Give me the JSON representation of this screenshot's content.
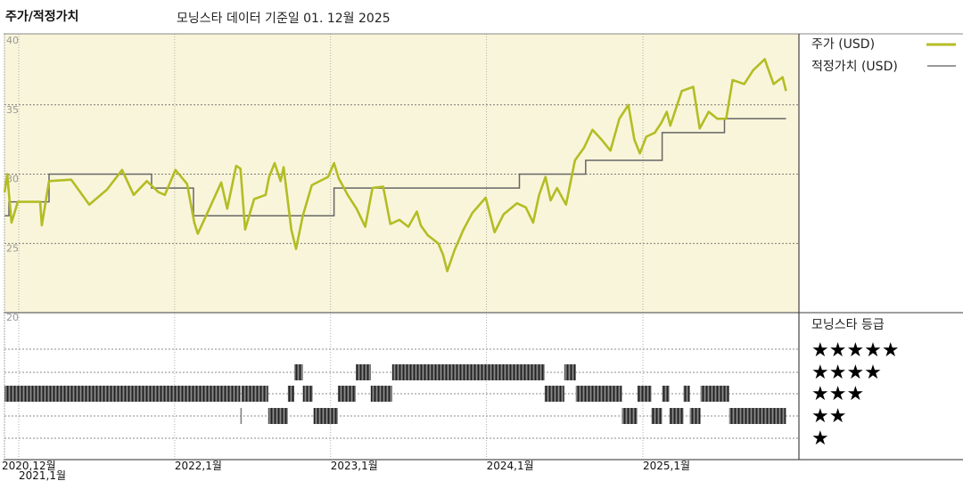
{
  "header": {
    "title": "주가/적정가치",
    "subtitle": "모닝스타 데이터 기준일 01. 12월 2025"
  },
  "legend": {
    "price_label": "주가 (USD)",
    "fair_value_label": "적정가치 (USD)",
    "rating_title": "모닝스타 등급",
    "rating_rows": [
      "★★★★★",
      "★★★★",
      "★★★",
      "★★",
      "★"
    ]
  },
  "colors": {
    "price": "#b3bd24",
    "fair_value": "#666666",
    "plot_background": "#f9f5da",
    "rating_bar": "#444444"
  },
  "chart_data": {
    "type": "line",
    "title": "주가/적정가치",
    "ylim": [
      20,
      40
    ],
    "y_ticks": [
      "40",
      "35",
      "30",
      "25",
      "20"
    ],
    "x_ticks": [
      {
        "date": "2020-12-01",
        "label": "2020,12월"
      },
      {
        "date": "2021-01-01",
        "label": "2021,1월"
      },
      {
        "date": "2022-01-01",
        "label": "2022,1월"
      },
      {
        "date": "2023-01-01",
        "label": "2023,1월"
      },
      {
        "date": "2024-01-01",
        "label": "2024,1월"
      },
      {
        "date": "2025-01-01",
        "label": "2025,1월"
      }
    ],
    "xlim": [
      "2020-11-28",
      "2025-12-27"
    ],
    "grid": true,
    "legend_position": "right",
    "series": [
      {
        "name": "주가 (USD)",
        "points": [
          [
            "2020-11-29",
            28.7
          ],
          [
            "2020-12-05",
            30.0
          ],
          [
            "2020-12-15",
            26.5
          ],
          [
            "2020-12-30",
            28.0
          ],
          [
            "2021-02-20",
            28.0
          ],
          [
            "2021-02-24",
            26.3
          ],
          [
            "2021-03-13",
            29.5
          ],
          [
            "2021-05-04",
            29.6
          ],
          [
            "2021-06-15",
            27.8
          ],
          [
            "2021-07-27",
            28.9
          ],
          [
            "2021-08-31",
            30.3
          ],
          [
            "2021-09-27",
            28.5
          ],
          [
            "2021-10-28",
            29.5
          ],
          [
            "2021-11-24",
            28.7
          ],
          [
            "2021-12-09",
            28.5
          ],
          [
            "2022-01-03",
            30.3
          ],
          [
            "2022-01-30",
            29.3
          ],
          [
            "2022-02-16",
            26.5
          ],
          [
            "2022-02-24",
            25.7
          ],
          [
            "2022-03-23",
            27.5
          ],
          [
            "2022-04-20",
            29.4
          ],
          [
            "2022-05-04",
            27.5
          ],
          [
            "2022-05-25",
            30.6
          ],
          [
            "2022-06-04",
            30.4
          ],
          [
            "2022-06-15",
            26.0
          ],
          [
            "2022-07-06",
            28.2
          ],
          [
            "2022-08-02",
            28.5
          ],
          [
            "2022-08-10",
            29.8
          ],
          [
            "2022-08-23",
            30.8
          ],
          [
            "2022-09-06",
            29.5
          ],
          [
            "2022-09-13",
            30.5
          ],
          [
            "2022-10-01",
            26.0
          ],
          [
            "2022-10-12",
            24.6
          ],
          [
            "2022-10-28",
            27.0
          ],
          [
            "2022-11-18",
            29.2
          ],
          [
            "2022-12-26",
            29.8
          ],
          [
            "2023-01-09",
            30.8
          ],
          [
            "2023-01-20",
            29.7
          ],
          [
            "2023-02-10",
            28.5
          ],
          [
            "2023-03-03",
            27.5
          ],
          [
            "2023-03-23",
            26.2
          ],
          [
            "2023-04-09",
            29.0
          ],
          [
            "2023-05-04",
            29.1
          ],
          [
            "2023-05-21",
            26.4
          ],
          [
            "2023-06-11",
            26.7
          ],
          [
            "2023-07-02",
            26.2
          ],
          [
            "2023-07-22",
            27.3
          ],
          [
            "2023-07-31",
            26.3
          ],
          [
            "2023-08-16",
            25.6
          ],
          [
            "2023-09-10",
            25.0
          ],
          [
            "2023-09-21",
            24.2
          ],
          [
            "2023-10-01",
            23.0
          ],
          [
            "2023-10-18",
            24.5
          ],
          [
            "2023-11-08",
            26.0
          ],
          [
            "2023-11-29",
            27.2
          ],
          [
            "2023-12-30",
            28.3
          ],
          [
            "2024-01-20",
            25.8
          ],
          [
            "2024-02-10",
            27.1
          ],
          [
            "2024-03-12",
            27.9
          ],
          [
            "2024-04-02",
            27.6
          ],
          [
            "2024-04-19",
            26.5
          ],
          [
            "2024-05-03",
            28.5
          ],
          [
            "2024-05-18",
            29.8
          ],
          [
            "2024-05-30",
            28.1
          ],
          [
            "2024-06-14",
            29.0
          ],
          [
            "2024-07-05",
            27.8
          ],
          [
            "2024-07-26",
            31.0
          ],
          [
            "2024-08-16",
            31.9
          ],
          [
            "2024-09-05",
            33.2
          ],
          [
            "2024-09-26",
            32.5
          ],
          [
            "2024-10-17",
            31.7
          ],
          [
            "2024-11-07",
            34.0
          ],
          [
            "2024-11-28",
            35.0
          ],
          [
            "2024-12-12",
            32.5
          ],
          [
            "2024-12-25",
            31.5
          ],
          [
            "2025-01-09",
            32.7
          ],
          [
            "2025-01-29",
            33.0
          ],
          [
            "2025-02-13",
            33.7
          ],
          [
            "2025-02-26",
            34.5
          ],
          [
            "2025-03-06",
            33.5
          ],
          [
            "2025-04-02",
            36.0
          ],
          [
            "2025-04-29",
            36.3
          ],
          [
            "2025-05-14",
            33.3
          ],
          [
            "2025-06-04",
            34.5
          ],
          [
            "2025-06-24",
            34.0
          ],
          [
            "2025-07-15",
            34.0
          ],
          [
            "2025-07-30",
            36.8
          ],
          [
            "2025-08-26",
            36.5
          ],
          [
            "2025-09-16",
            37.5
          ],
          [
            "2025-10-13",
            38.3
          ],
          [
            "2025-11-03",
            36.5
          ],
          [
            "2025-11-24",
            37.0
          ],
          [
            "2025-12-02",
            36.0
          ]
        ]
      },
      {
        "name": "적정가치 (USD)",
        "step": true,
        "points": [
          [
            "2020-11-29",
            27
          ],
          [
            "2020-12-09",
            28
          ],
          [
            "2021-03-13",
            30
          ],
          [
            "2021-11-08",
            29
          ],
          [
            "2022-02-14",
            27
          ],
          [
            "2023-01-09",
            29
          ],
          [
            "2024-03-18",
            30
          ],
          [
            "2024-08-20",
            31
          ],
          [
            "2025-02-15",
            33
          ],
          [
            "2025-07-11",
            34
          ],
          [
            "2025-12-02",
            34
          ]
        ]
      }
    ],
    "ratings": [
      {
        "start": "2020-11-29",
        "end": "2022-06-04",
        "stars": 3
      },
      {
        "start": "2022-06-04",
        "end": "2022-06-06",
        "stars": 2
      },
      {
        "start": "2022-06-06",
        "end": "2022-08-08",
        "stars": 3
      },
      {
        "start": "2022-08-08",
        "end": "2022-09-23",
        "stars": 2
      },
      {
        "start": "2022-09-23",
        "end": "2022-10-08",
        "stars": 3
      },
      {
        "start": "2022-10-08",
        "end": "2022-10-28",
        "stars": 4
      },
      {
        "start": "2022-10-28",
        "end": "2022-11-20",
        "stars": 3
      },
      {
        "start": "2022-11-22",
        "end": "2023-01-18",
        "stars": 2
      },
      {
        "start": "2023-01-18",
        "end": "2023-03-01",
        "stars": 3
      },
      {
        "start": "2023-03-01",
        "end": "2023-04-05",
        "stars": 4
      },
      {
        "start": "2023-04-05",
        "end": "2023-05-25",
        "stars": 3
      },
      {
        "start": "2023-05-25",
        "end": "2024-05-16",
        "stars": 4
      },
      {
        "start": "2024-05-16",
        "end": "2024-07-01",
        "stars": 3
      },
      {
        "start": "2024-07-01",
        "end": "2024-07-28",
        "stars": 4
      },
      {
        "start": "2024-07-28",
        "end": "2024-11-13",
        "stars": 3
      },
      {
        "start": "2024-11-13",
        "end": "2024-12-19",
        "stars": 2
      },
      {
        "start": "2024-12-19",
        "end": "2025-01-21",
        "stars": 3
      },
      {
        "start": "2025-01-21",
        "end": "2025-02-15",
        "stars": 2
      },
      {
        "start": "2025-02-15",
        "end": "2025-03-04",
        "stars": 3
      },
      {
        "start": "2025-03-04",
        "end": "2025-04-06",
        "stars": 2
      },
      {
        "start": "2025-04-06",
        "end": "2025-04-21",
        "stars": 3
      },
      {
        "start": "2025-04-21",
        "end": "2025-05-16",
        "stars": 2
      },
      {
        "start": "2025-05-16",
        "end": "2025-07-22",
        "stars": 3
      },
      {
        "start": "2025-07-22",
        "end": "2025-12-02",
        "stars": 2
      }
    ]
  }
}
